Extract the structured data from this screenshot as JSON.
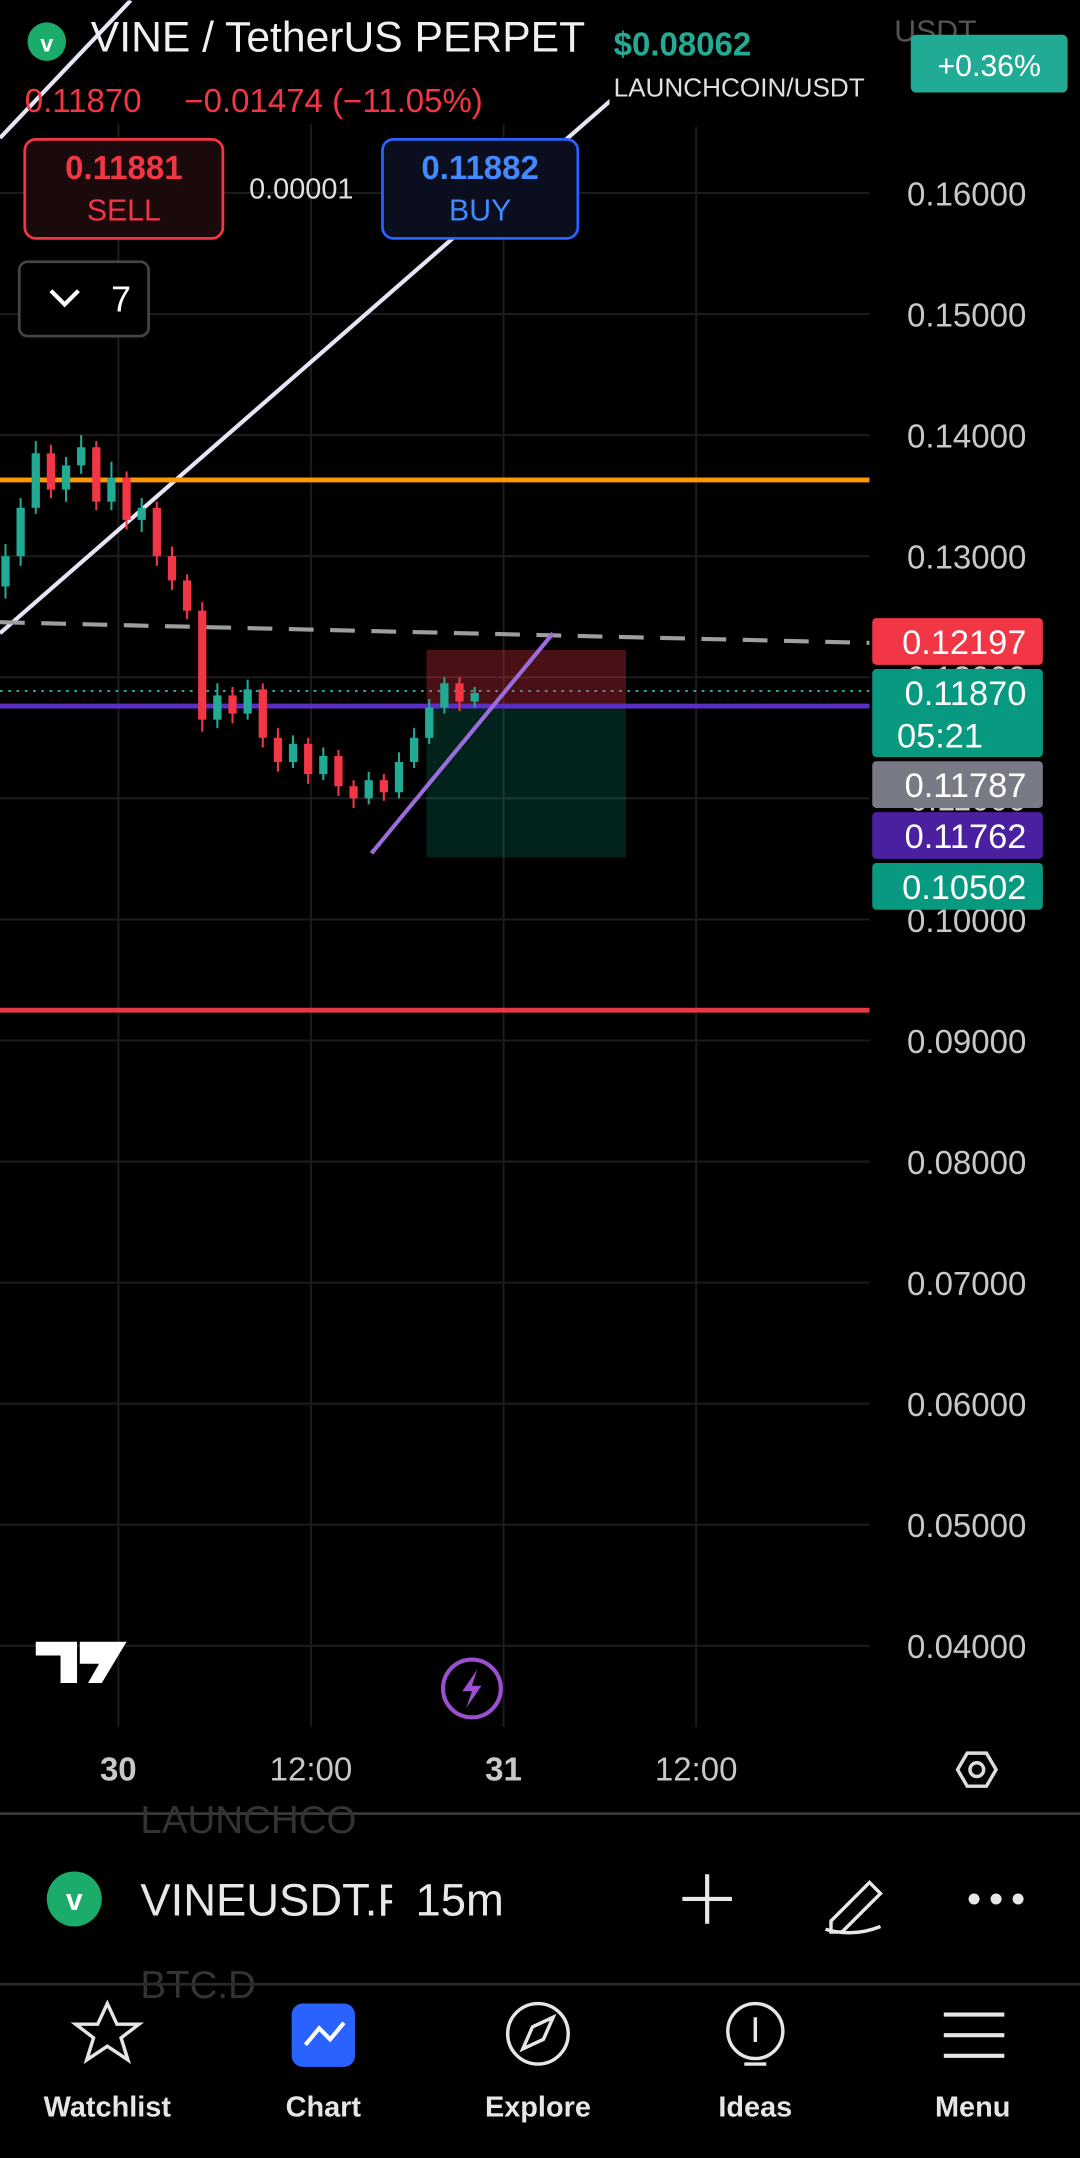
{
  "header": {
    "symbol": "VINE / TetherUS PERPET",
    "last_price": "0.11870",
    "change": "−0.01474 (−11.05%)",
    "sell": {
      "price": "0.11881",
      "label": "SELL"
    },
    "spread": "0.00001",
    "buy": {
      "price": "0.11882",
      "label": "BUY"
    },
    "indicators_count": "7"
  },
  "overlay_widget": {
    "price": "$0.08062",
    "pair": "LAUNCHCOIN/USDT",
    "change": "+0.36%",
    "partial": "USDT"
  },
  "price_axis": [
    "0.16000",
    "0.15000",
    "0.14000",
    "0.13000",
    "0.12000",
    "0.11000",
    "0.10000",
    "0.09000",
    "0.08000",
    "0.07000",
    "0.06000",
    "0.05000",
    "0.04000"
  ],
  "price_tags": [
    {
      "price": "0.12197",
      "color": "#f23645"
    },
    {
      "price": "0.11870",
      "countdown": "05:21",
      "color": "#089981"
    },
    {
      "price": "0.11787",
      "color": "#787b86"
    },
    {
      "price": "0.11762",
      "color": "#4a1fa0"
    },
    {
      "price": "0.10502",
      "color": "#089981"
    }
  ],
  "time_axis": [
    "30",
    "12:00",
    "31",
    "12:00"
  ],
  "candles": [
    [
      0.1275,
      0.131,
      0.1265,
      0.13
    ],
    [
      0.13,
      0.1348,
      0.1292,
      0.134
    ],
    [
      0.134,
      0.1395,
      0.1335,
      0.1385
    ],
    [
      0.1385,
      0.1392,
      0.1348,
      0.1355
    ],
    [
      0.1355,
      0.1382,
      0.1345,
      0.1375
    ],
    [
      0.1375,
      0.14,
      0.1368,
      0.139
    ],
    [
      0.139,
      0.1395,
      0.1338,
      0.1345
    ],
    [
      0.1345,
      0.1378,
      0.1338,
      0.1365
    ],
    [
      0.1365,
      0.137,
      0.1322,
      0.133
    ],
    [
      0.133,
      0.1348,
      0.132,
      0.134
    ],
    [
      0.134,
      0.1345,
      0.1292,
      0.13
    ],
    [
      0.13,
      0.1308,
      0.1272,
      0.128
    ],
    [
      0.128,
      0.1285,
      0.1248,
      0.1255
    ],
    [
      0.1255,
      0.1262,
      0.1155,
      0.1165
    ],
    [
      0.1165,
      0.1195,
      0.1158,
      0.1185
    ],
    [
      0.1185,
      0.1192,
      0.1162,
      0.117
    ],
    [
      0.117,
      0.1198,
      0.1165,
      0.119
    ],
    [
      0.119,
      0.1195,
      0.1142,
      0.115
    ],
    [
      0.115,
      0.1158,
      0.1122,
      0.113
    ],
    [
      0.113,
      0.1152,
      0.1125,
      0.1145
    ],
    [
      0.1145,
      0.115,
      0.1112,
      0.112
    ],
    [
      0.112,
      0.1142,
      0.1115,
      0.1135
    ],
    [
      0.1135,
      0.114,
      0.1102,
      0.111
    ],
    [
      0.111,
      0.1115,
      0.1092,
      0.11
    ],
    [
      0.11,
      0.1122,
      0.1095,
      0.1115
    ],
    [
      0.1115,
      0.112,
      0.1098,
      0.1105
    ],
    [
      0.1105,
      0.1138,
      0.11,
      0.113
    ],
    [
      0.113,
      0.1158,
      0.1125,
      0.115
    ],
    [
      0.115,
      0.1182,
      0.1145,
      0.1175
    ],
    [
      0.1175,
      0.12,
      0.117,
      0.1195
    ],
    [
      0.1195,
      0.12,
      0.1172,
      0.118
    ],
    [
      0.118,
      0.1192,
      0.1175,
      0.1187
    ]
  ],
  "levels": [
    {
      "price": 0.1363,
      "color": "#ff9800"
    },
    {
      "price": 0.11762,
      "color": "#5b2fc4"
    },
    {
      "price": 0.0925,
      "color": "#e53945"
    }
  ],
  "toolbar": {
    "symbol": "VINEUSDT.P",
    "interval": "15m",
    "ghost": [
      "LAUNCHCO",
      "BTC.D"
    ]
  },
  "nav": [
    "Watchlist",
    "Chart",
    "Explore",
    "Ideas",
    "Menu"
  ]
}
